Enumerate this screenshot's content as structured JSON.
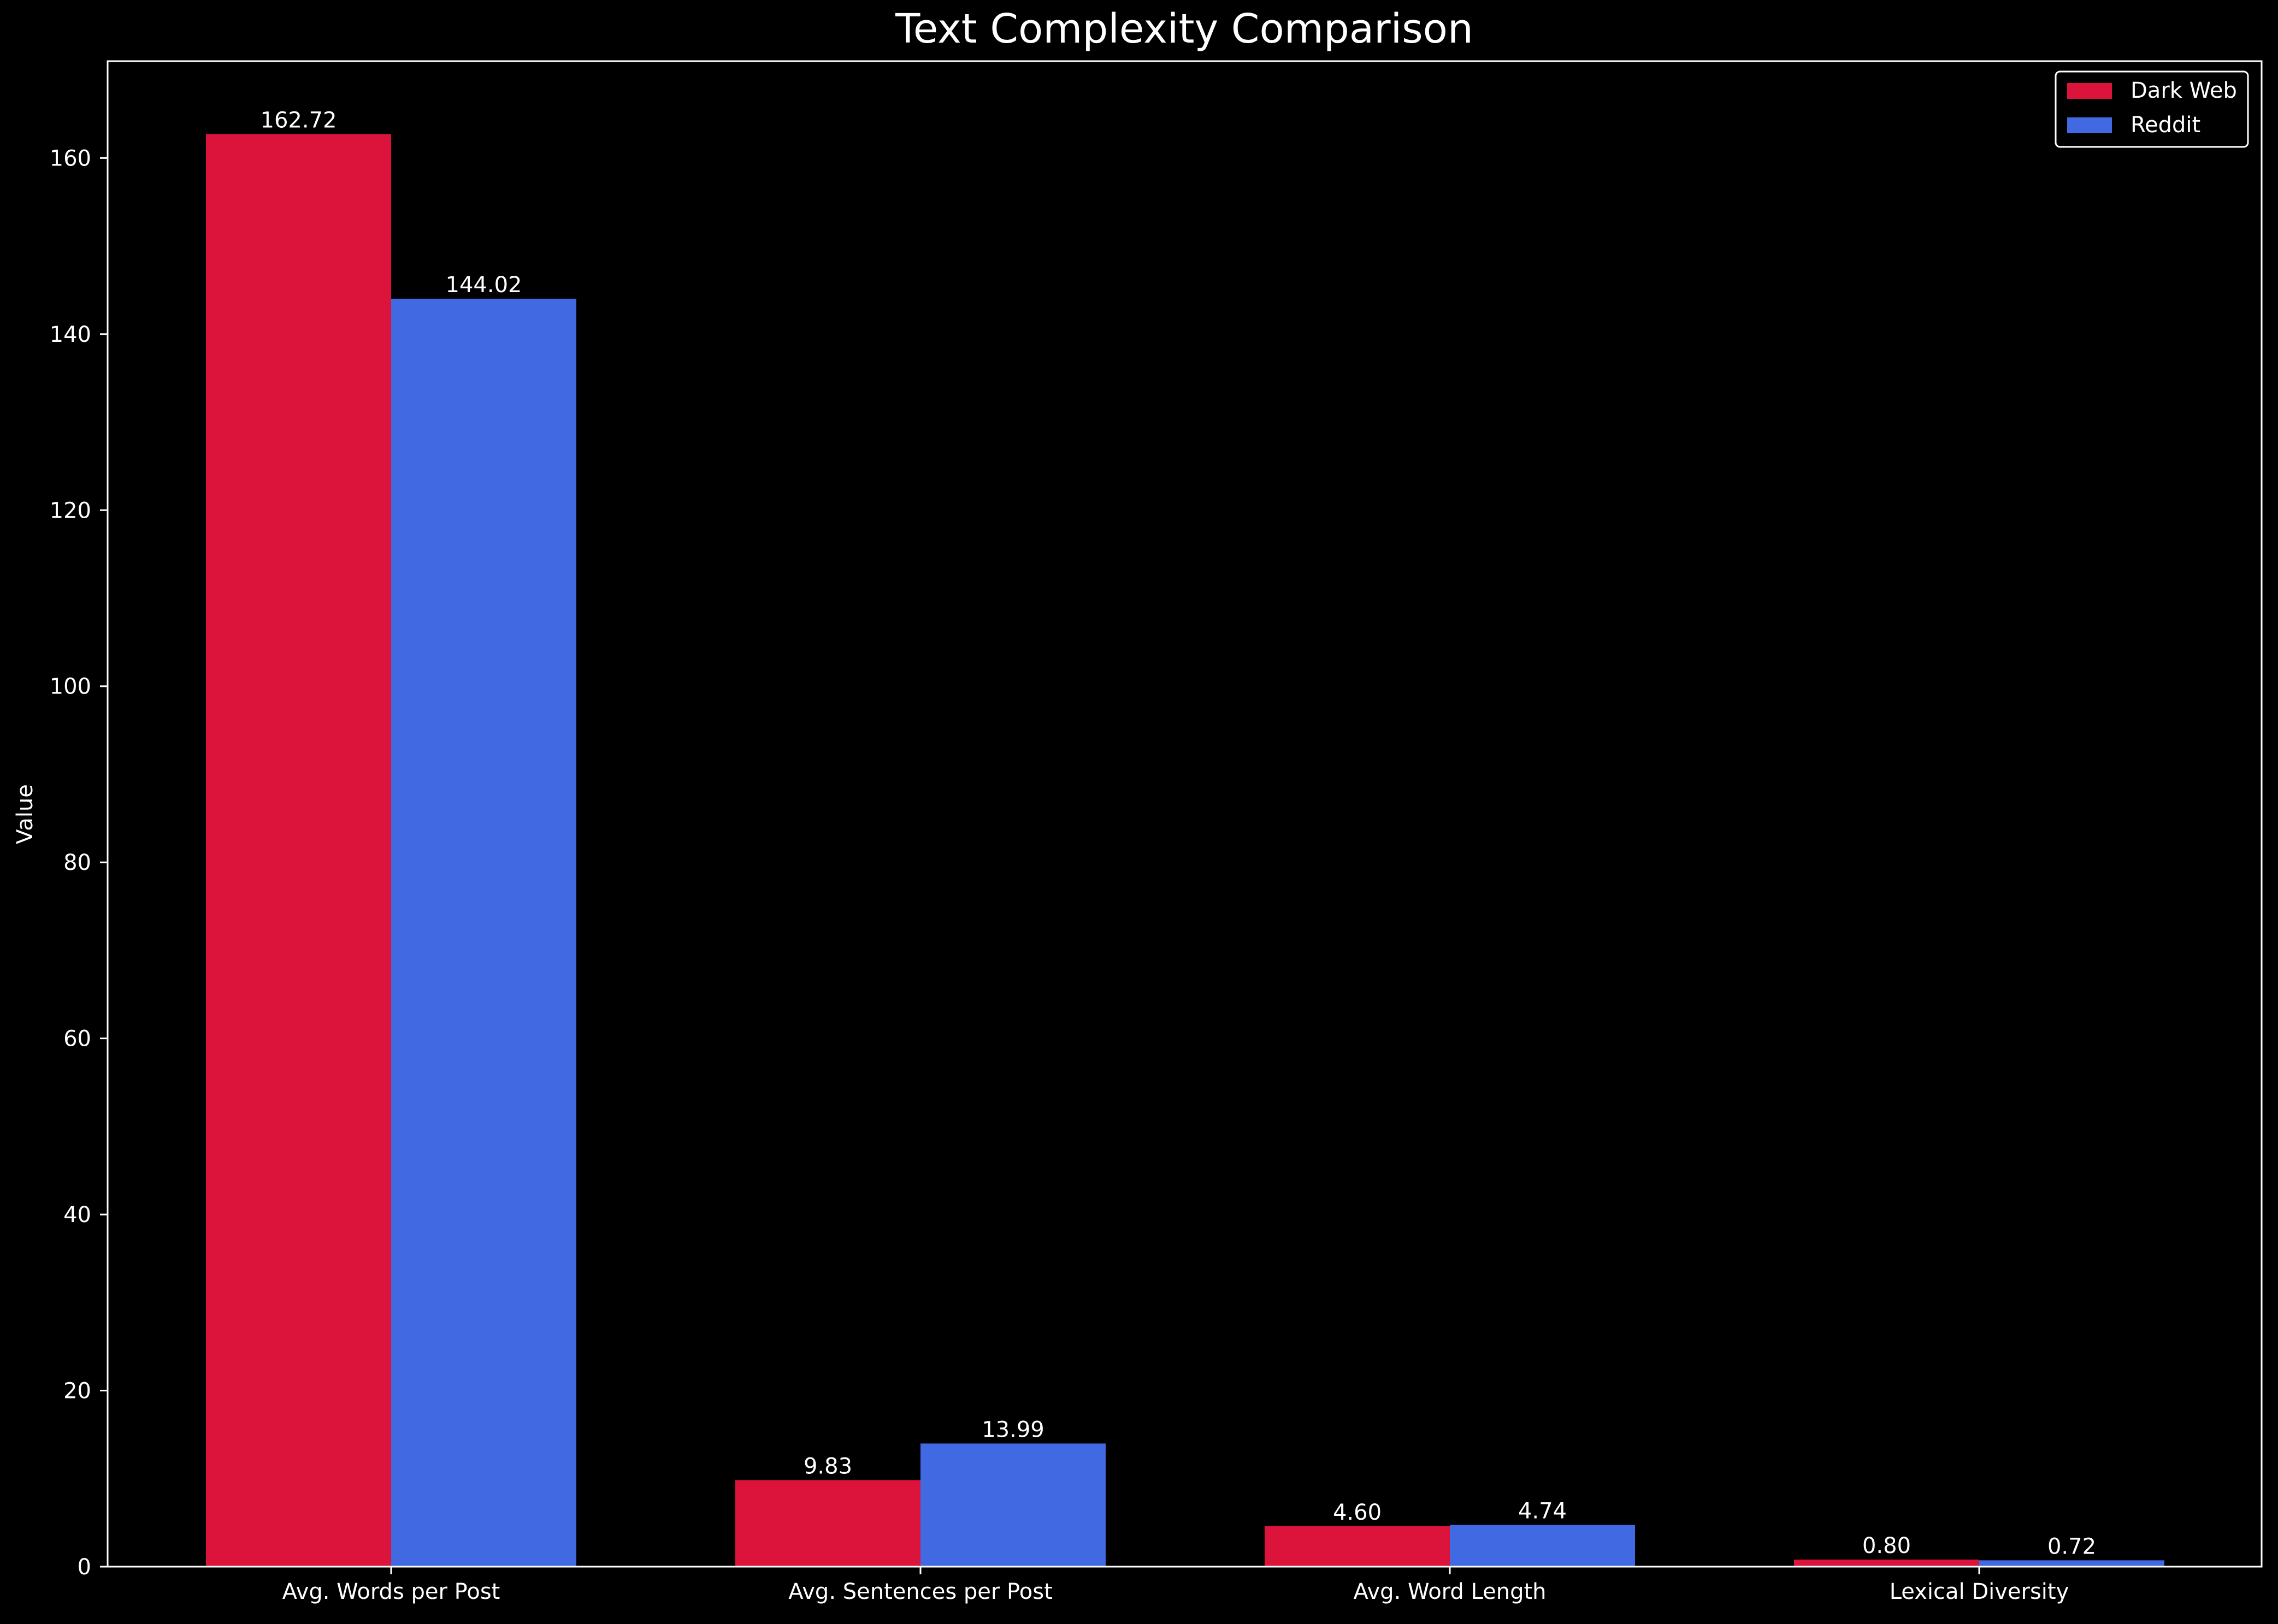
{
  "chart_data": {
    "type": "bar",
    "title": "Text Complexity Comparison",
    "xlabel": "",
    "ylabel": "Value",
    "categories": [
      "Avg. Words per Post",
      "Avg. Sentences per Post",
      "Avg. Word Length",
      "Lexical Diversity"
    ],
    "series": [
      {
        "name": "Dark Web",
        "color": "#DC143C",
        "values": [
          162.72,
          9.83,
          4.6,
          0.8
        ],
        "labels": [
          "162.72",
          "9.83",
          "4.60",
          "0.80"
        ]
      },
      {
        "name": "Reddit",
        "color": "#4169E1",
        "values": [
          144.02,
          13.99,
          4.74,
          0.72
        ],
        "labels": [
          "144.02",
          "13.99",
          "4.74",
          "0.72"
        ]
      }
    ],
    "ylim": [
      0,
      171
    ],
    "yticks": [
      0,
      20,
      40,
      60,
      80,
      100,
      120,
      140,
      160
    ],
    "grid": false,
    "legend_position": "top-right",
    "background_color": "#000000",
    "text_color": "#ffffff"
  }
}
